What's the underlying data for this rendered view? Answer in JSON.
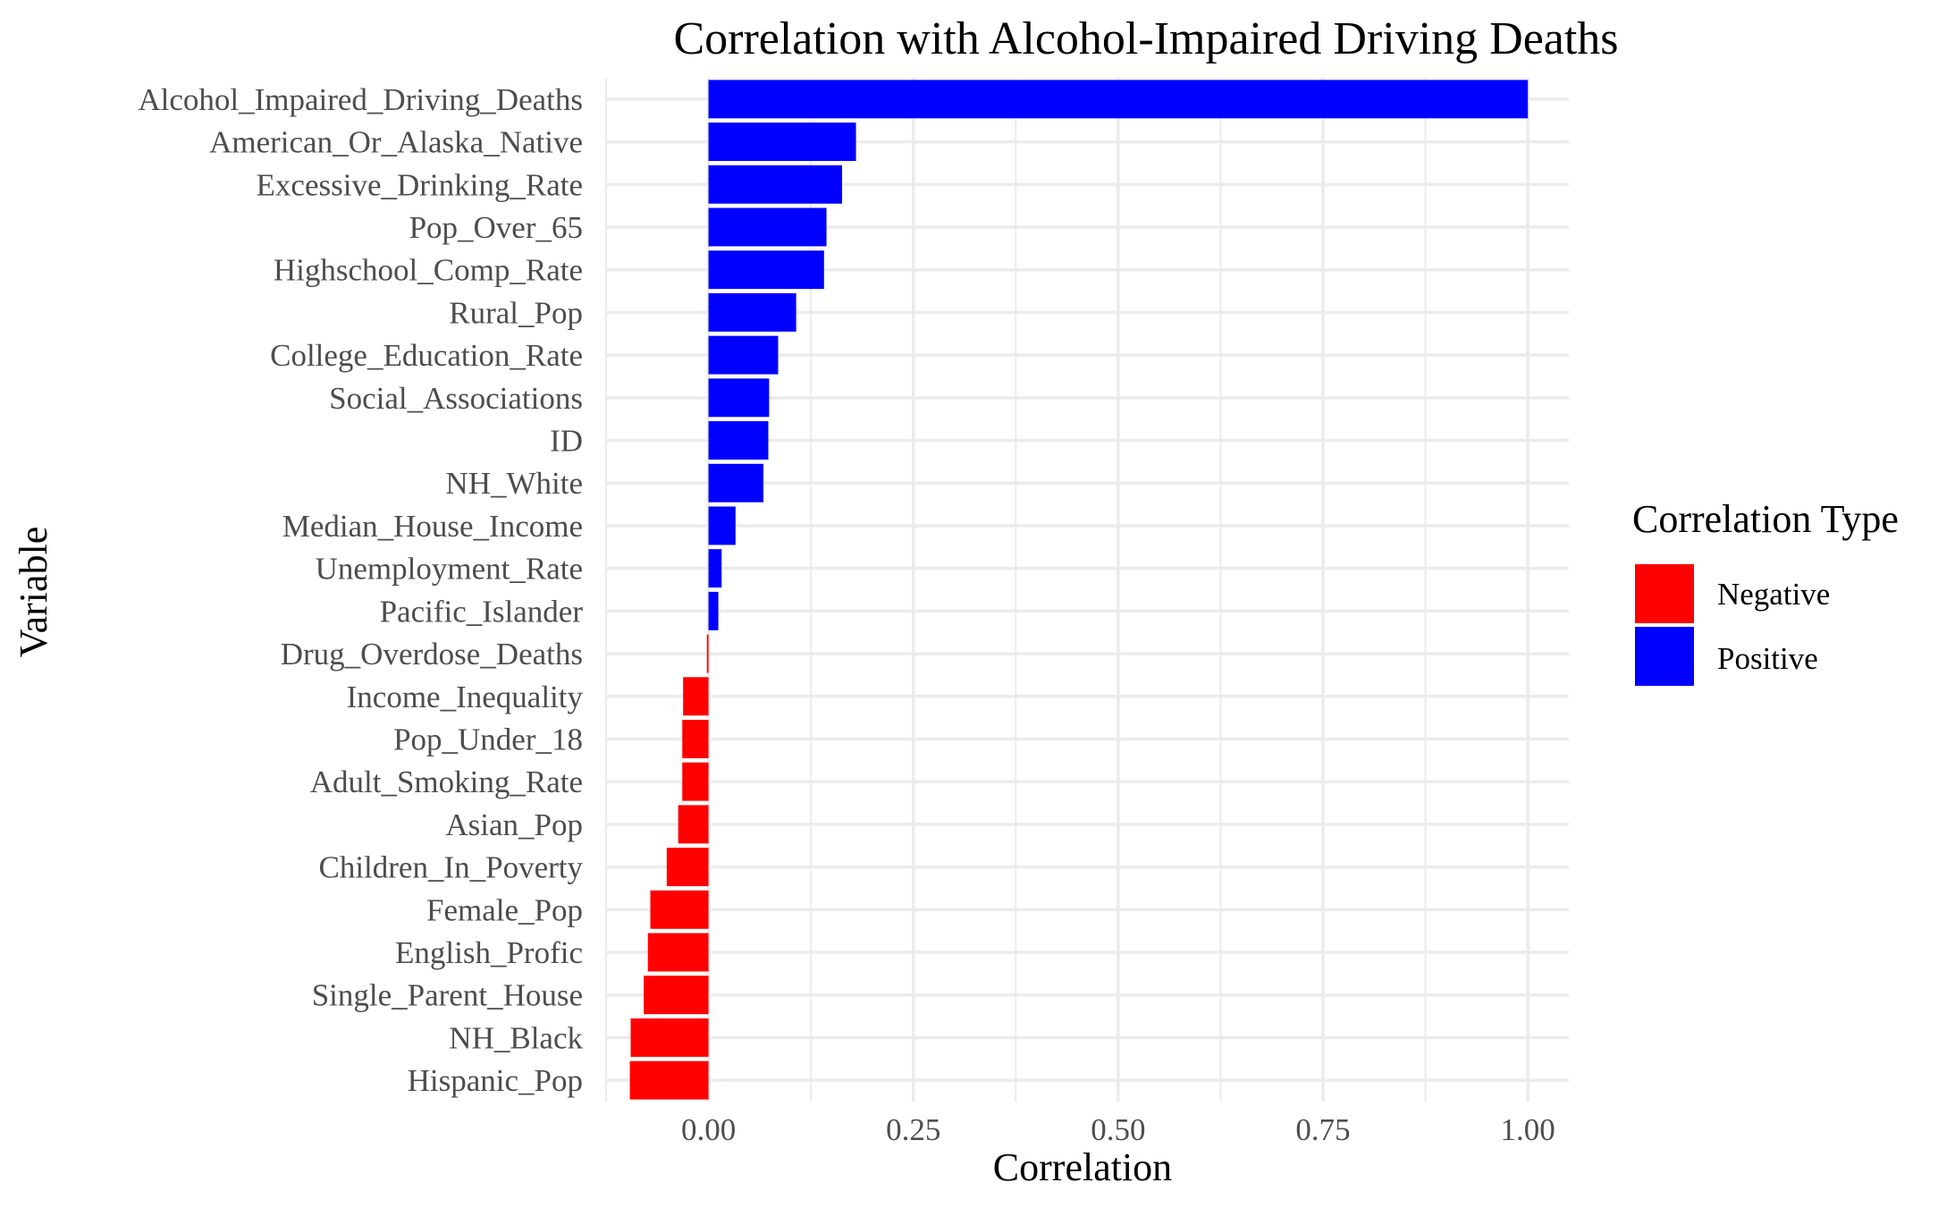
{
  "chart_data": {
    "type": "bar",
    "orientation": "horizontal",
    "title": "Correlation with Alcohol-Impaired Driving Deaths",
    "xlabel": "Correlation",
    "ylabel": "Variable",
    "xlim": [
      -0.125,
      1.05
    ],
    "x_ticks": [
      "0.00",
      "0.25",
      "0.50",
      "0.75",
      "1.00"
    ],
    "x_tick_values": [
      0,
      0.25,
      0.5,
      0.75,
      1.0
    ],
    "grid": true,
    "legend": {
      "title": "Correlation Type",
      "placement": "right",
      "entries": [
        {
          "label": "Negative",
          "color": "#ff0000"
        },
        {
          "label": "Positive",
          "color": "#0000ff"
        }
      ]
    },
    "categories": [
      "Alcohol_Impaired_Driving_Deaths",
      "American_Or_Alaska_Native",
      "Excessive_Drinking_Rate",
      "Pop_Over_65",
      "Highschool_Comp_Rate",
      "Rural_Pop",
      "College_Education_Rate",
      "Social_Associations",
      "ID",
      "NH_White",
      "Median_House_Income",
      "Unemployment_Rate",
      "Pacific_Islander",
      "Drug_Overdose_Deaths",
      "Income_Inequality",
      "Pop_Under_18",
      "Adult_Smoking_Rate",
      "Asian_Pop",
      "Children_In_Poverty",
      "Female_Pop",
      "English_Profic",
      "Single_Parent_House",
      "NH_Black",
      "Hispanic_Pop"
    ],
    "values": [
      1.0,
      0.18,
      0.163,
      0.144,
      0.141,
      0.107,
      0.085,
      0.074,
      0.073,
      0.067,
      0.033,
      0.016,
      0.012,
      -0.002,
      -0.031,
      -0.032,
      -0.032,
      -0.037,
      -0.051,
      -0.071,
      -0.074,
      -0.079,
      -0.095,
      -0.096
    ],
    "colors": {
      "positive": "#0000ff",
      "negative": "#ff0000",
      "grid": "#ebebeb"
    }
  }
}
